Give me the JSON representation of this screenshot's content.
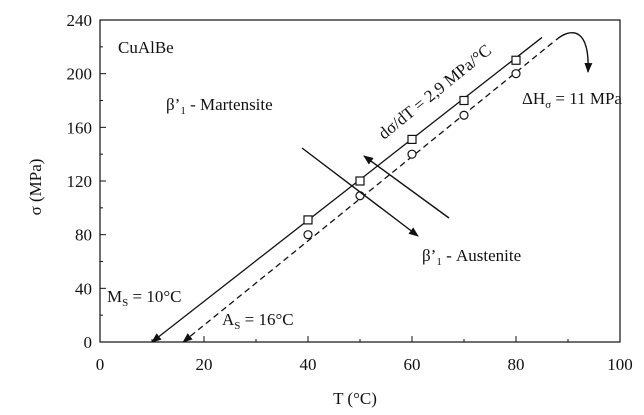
{
  "chart_data": {
    "type": "scatter",
    "xlabel": "T (°C)",
    "ylabel": "σ (MPa)",
    "xlim": [
      0,
      100
    ],
    "ylim": [
      0,
      240
    ],
    "x_ticks": [
      0,
      20,
      40,
      60,
      80,
      100
    ],
    "y_ticks": [
      0,
      40,
      80,
      120,
      160,
      200,
      240
    ],
    "grid": false,
    "series": [
      {
        "marker": "square",
        "line": "solid",
        "x": [
          40,
          50,
          60,
          70,
          80
        ],
        "y": [
          91,
          120,
          151,
          180,
          210
        ]
      },
      {
        "marker": "circle",
        "line": "dashed",
        "x": [
          40,
          50,
          60,
          70,
          80
        ],
        "y": [
          80,
          109,
          140,
          169,
          200
        ]
      }
    ],
    "fit_lines": [
      {
        "style": "solid",
        "from": [
          10,
          0
        ],
        "to": [
          85,
          227
        ]
      },
      {
        "style": "dashed",
        "from": [
          16,
          0
        ],
        "to": [
          87,
          223
        ]
      }
    ],
    "annotations": {
      "material": "CuAlBe",
      "martensite": "β’",
      "martensite_sub": "1",
      "martensite_rest": " - Martensite",
      "austenite": "β’",
      "austenite_sub": "1",
      "austenite_rest": " - Austenite",
      "slope": "dσ/dT = 2,9 MPa/°C",
      "dh_main": "ΔH",
      "dh_sub": "σ",
      "dh_rest": " = 11 MPa",
      "ms_main": "M",
      "ms_sub": "S",
      "ms_rest": " = 10°C",
      "as_main": "A",
      "as_sub": "S",
      "as_rest": " = 16°C"
    }
  }
}
